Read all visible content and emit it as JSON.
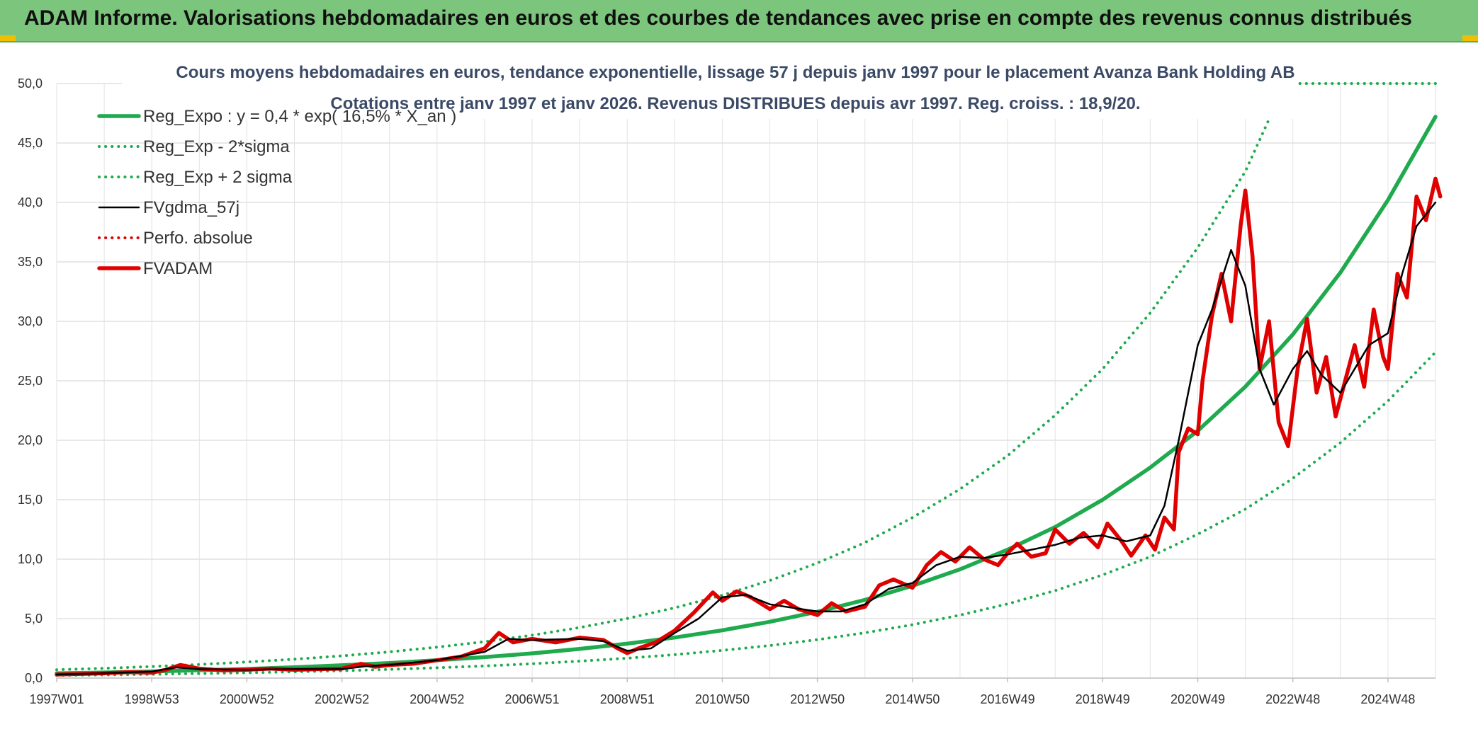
{
  "banner": {
    "title": "ADAM Informe. Valorisations hebdomadaires en euros et des courbes de tendances avec prise en compte des revenus connus distribués"
  },
  "chart_data": {
    "type": "line",
    "title": "Cours moyens hebdomadaires en euros, tendance exponentielle, lissage 57 j depuis janv 1997 pour le placement Avanza Bank Holding AB",
    "subtitle": "Cotations entre janv 1997 et janv 2026. Revenus DISTRIBUES depuis avr 1997. Reg. croiss. : 18,9/20.",
    "xlabel": "",
    "ylabel": "",
    "xlim": [
      1997.0,
      2026.0
    ],
    "ylim": [
      0,
      50
    ],
    "y_ticks": [
      "0,0",
      "5,0",
      "10,0",
      "15,0",
      "20,0",
      "25,0",
      "30,0",
      "35,0",
      "40,0",
      "45,0",
      "50,0"
    ],
    "x_ticks": [
      {
        "label": "1997W01",
        "x": 1997.0
      },
      {
        "label": "1998W53",
        "x": 1999.0
      },
      {
        "label": "2000W52",
        "x": 2001.0
      },
      {
        "label": "2002W52",
        "x": 2003.0
      },
      {
        "label": "2004W52",
        "x": 2005.0
      },
      {
        "label": "2006W51",
        "x": 2007.0
      },
      {
        "label": "2008W51",
        "x": 2009.0
      },
      {
        "label": "2010W50",
        "x": 2011.0
      },
      {
        "label": "2012W50",
        "x": 2013.0
      },
      {
        "label": "2014W50",
        "x": 2015.0
      },
      {
        "label": "2016W49",
        "x": 2017.0
      },
      {
        "label": "2018W49",
        "x": 2019.0
      },
      {
        "label": "2020W49",
        "x": 2021.0
      },
      {
        "label": "2022W48",
        "x": 2023.0
      },
      {
        "label": "2024W48",
        "x": 2025.0
      }
    ],
    "legend_position": "top-left",
    "series": [
      {
        "name": "Reg_Expo : y = 0,4 * exp( 16,5% *  X_an )",
        "color": "#1faa4e",
        "style": "solid-thick",
        "points": [
          [
            1997.0,
            0.4
          ],
          [
            1998.0,
            0.47
          ],
          [
            1999.0,
            0.56
          ],
          [
            2000.0,
            0.66
          ],
          [
            2001.0,
            0.77
          ],
          [
            2002.0,
            0.91
          ],
          [
            2003.0,
            1.08
          ],
          [
            2004.0,
            1.27
          ],
          [
            2005.0,
            1.5
          ],
          [
            2006.0,
            1.76
          ],
          [
            2007.0,
            2.08
          ],
          [
            2008.0,
            2.45
          ],
          [
            2009.0,
            2.89
          ],
          [
            2010.0,
            3.41
          ],
          [
            2011.0,
            4.02
          ],
          [
            2012.0,
            4.74
          ],
          [
            2013.0,
            5.58
          ],
          [
            2014.0,
            6.58
          ],
          [
            2015.0,
            7.76
          ],
          [
            2016.0,
            9.15
          ],
          [
            2017.0,
            10.8
          ],
          [
            2018.0,
            12.7
          ],
          [
            2019.0,
            15.0
          ],
          [
            2020.0,
            17.7
          ],
          [
            2021.0,
            20.8
          ],
          [
            2022.0,
            24.5
          ],
          [
            2023.0,
            28.9
          ],
          [
            2024.0,
            34.1
          ],
          [
            2025.0,
            40.2
          ],
          [
            2026.0,
            47.2
          ]
        ]
      },
      {
        "name": "Reg_Exp - 2*sigma",
        "color": "#1faa4e",
        "style": "dotted",
        "points": [
          [
            1997.0,
            0.23
          ],
          [
            1998.0,
            0.27
          ],
          [
            1999.0,
            0.32
          ],
          [
            2000.0,
            0.38
          ],
          [
            2001.0,
            0.45
          ],
          [
            2002.0,
            0.53
          ],
          [
            2003.0,
            0.62
          ],
          [
            2004.0,
            0.73
          ],
          [
            2005.0,
            0.87
          ],
          [
            2006.0,
            1.02
          ],
          [
            2007.0,
            1.2
          ],
          [
            2008.0,
            1.42
          ],
          [
            2009.0,
            1.67
          ],
          [
            2010.0,
            1.97
          ],
          [
            2011.0,
            2.33
          ],
          [
            2012.0,
            2.74
          ],
          [
            2013.0,
            3.23
          ],
          [
            2014.0,
            3.81
          ],
          [
            2015.0,
            4.49
          ],
          [
            2016.0,
            5.3
          ],
          [
            2017.0,
            6.24
          ],
          [
            2018.0,
            7.36
          ],
          [
            2019.0,
            8.68
          ],
          [
            2020.0,
            10.2
          ],
          [
            2021.0,
            12.1
          ],
          [
            2022.0,
            14.2
          ],
          [
            2023.0,
            16.8
          ],
          [
            2024.0,
            19.8
          ],
          [
            2025.0,
            23.3
          ],
          [
            2026.0,
            27.4
          ]
        ]
      },
      {
        "name": "Reg_Exp + 2 sigma",
        "color": "#1faa4e",
        "style": "dotted",
        "points": [
          [
            1997.0,
            0.7
          ],
          [
            1998.0,
            0.82
          ],
          [
            1999.0,
            0.97
          ],
          [
            2000.0,
            1.14
          ],
          [
            2001.0,
            1.35
          ],
          [
            2002.0,
            1.59
          ],
          [
            2003.0,
            1.87
          ],
          [
            2004.0,
            2.2
          ],
          [
            2005.0,
            2.6
          ],
          [
            2006.0,
            3.06
          ],
          [
            2007.0,
            3.61
          ],
          [
            2008.0,
            4.25
          ],
          [
            2009.0,
            5.01
          ],
          [
            2010.0,
            5.91
          ],
          [
            2011.0,
            6.97
          ],
          [
            2012.0,
            8.21
          ],
          [
            2013.0,
            9.68
          ],
          [
            2014.0,
            11.4
          ],
          [
            2015.0,
            13.5
          ],
          [
            2016.0,
            15.9
          ],
          [
            2017.0,
            18.7
          ],
          [
            2018.0,
            22.1
          ],
          [
            2019.0,
            26.0
          ],
          [
            2020.0,
            30.7
          ],
          [
            2021.0,
            36.2
          ],
          [
            2022.0,
            42.6
          ],
          [
            2022.5,
            47.0
          ],
          [
            2022.8,
            50.0
          ],
          [
            2026.0,
            50.0
          ]
        ]
      },
      {
        "name": "FVgdma_57j",
        "color": "#000000",
        "style": "solid",
        "points": [
          [
            1997.0,
            0.3
          ],
          [
            1998.0,
            0.4
          ],
          [
            1999.0,
            0.55
          ],
          [
            1999.5,
            0.9
          ],
          [
            2000.0,
            0.75
          ],
          [
            2001.0,
            0.7
          ],
          [
            2002.0,
            0.75
          ],
          [
            2003.0,
            0.75
          ],
          [
            2003.5,
            1.0
          ],
          [
            2004.0,
            1.1
          ],
          [
            2005.0,
            1.5
          ],
          [
            2006.0,
            2.2
          ],
          [
            2006.5,
            3.3
          ],
          [
            2007.0,
            3.2
          ],
          [
            2008.0,
            3.3
          ],
          [
            2008.5,
            3.1
          ],
          [
            2009.0,
            2.3
          ],
          [
            2009.5,
            2.5
          ],
          [
            2010.0,
            3.8
          ],
          [
            2010.5,
            5.0
          ],
          [
            2011.0,
            6.8
          ],
          [
            2011.5,
            7.0
          ],
          [
            2012.0,
            6.2
          ],
          [
            2012.5,
            5.9
          ],
          [
            2013.0,
            5.6
          ],
          [
            2013.5,
            5.6
          ],
          [
            2014.0,
            6.2
          ],
          [
            2014.5,
            7.5
          ],
          [
            2015.0,
            8.0
          ],
          [
            2015.5,
            9.5
          ],
          [
            2016.0,
            10.2
          ],
          [
            2016.5,
            10.1
          ],
          [
            2017.0,
            10.4
          ],
          [
            2017.5,
            10.8
          ],
          [
            2018.0,
            11.2
          ],
          [
            2018.5,
            11.8
          ],
          [
            2019.0,
            12.0
          ],
          [
            2019.5,
            11.5
          ],
          [
            2020.0,
            12.0
          ],
          [
            2020.3,
            14.5
          ],
          [
            2020.6,
            20.0
          ],
          [
            2021.0,
            28.0
          ],
          [
            2021.3,
            31.0
          ],
          [
            2021.7,
            36.0
          ],
          [
            2022.0,
            33.0
          ],
          [
            2022.3,
            26.0
          ],
          [
            2022.6,
            23.0
          ],
          [
            2023.0,
            26.0
          ],
          [
            2023.3,
            27.5
          ],
          [
            2023.6,
            25.5
          ],
          [
            2024.0,
            24.0
          ],
          [
            2024.3,
            26.0
          ],
          [
            2024.6,
            28.0
          ],
          [
            2025.0,
            29.0
          ],
          [
            2025.3,
            34.0
          ],
          [
            2025.6,
            38.0
          ],
          [
            2026.0,
            40.0
          ]
        ]
      },
      {
        "name": "Perfo. absolue",
        "color": "#e00000",
        "style": "dotted",
        "points": []
      },
      {
        "name": "FVADAM",
        "color": "#e00000",
        "style": "solid-thick",
        "points": [
          [
            1997.0,
            0.3
          ],
          [
            1997.5,
            0.35
          ],
          [
            1998.0,
            0.4
          ],
          [
            1998.5,
            0.5
          ],
          [
            1999.0,
            0.45
          ],
          [
            1999.3,
            0.7
          ],
          [
            1999.6,
            1.1
          ],
          [
            2000.0,
            0.8
          ],
          [
            2000.5,
            0.65
          ],
          [
            2001.0,
            0.7
          ],
          [
            2001.5,
            0.8
          ],
          [
            2002.0,
            0.7
          ],
          [
            2002.5,
            0.75
          ],
          [
            2003.0,
            0.8
          ],
          [
            2003.4,
            1.2
          ],
          [
            2003.7,
            0.95
          ],
          [
            2004.0,
            1.1
          ],
          [
            2004.5,
            1.2
          ],
          [
            2005.0,
            1.5
          ],
          [
            2005.5,
            1.8
          ],
          [
            2006.0,
            2.5
          ],
          [
            2006.3,
            3.8
          ],
          [
            2006.6,
            3.0
          ],
          [
            2007.0,
            3.3
          ],
          [
            2007.5,
            3.0
          ],
          [
            2008.0,
            3.4
          ],
          [
            2008.5,
            3.2
          ],
          [
            2008.8,
            2.5
          ],
          [
            2009.0,
            2.1
          ],
          [
            2009.3,
            2.6
          ],
          [
            2009.6,
            3.0
          ],
          [
            2010.0,
            4.0
          ],
          [
            2010.4,
            5.5
          ],
          [
            2010.8,
            7.2
          ],
          [
            2011.0,
            6.5
          ],
          [
            2011.3,
            7.3
          ],
          [
            2011.6,
            6.8
          ],
          [
            2012.0,
            5.8
          ],
          [
            2012.3,
            6.5
          ],
          [
            2012.6,
            5.8
          ],
          [
            2013.0,
            5.3
          ],
          [
            2013.3,
            6.3
          ],
          [
            2013.6,
            5.6
          ],
          [
            2014.0,
            6.0
          ],
          [
            2014.3,
            7.8
          ],
          [
            2014.6,
            8.3
          ],
          [
            2015.0,
            7.6
          ],
          [
            2015.3,
            9.5
          ],
          [
            2015.6,
            10.6
          ],
          [
            2015.9,
            9.8
          ],
          [
            2016.2,
            11.0
          ],
          [
            2016.5,
            10.0
          ],
          [
            2016.8,
            9.5
          ],
          [
            2017.0,
            10.5
          ],
          [
            2017.2,
            11.3
          ],
          [
            2017.5,
            10.2
          ],
          [
            2017.8,
            10.5
          ],
          [
            2018.0,
            12.5
          ],
          [
            2018.3,
            11.3
          ],
          [
            2018.6,
            12.2
          ],
          [
            2018.9,
            11.0
          ],
          [
            2019.1,
            13.0
          ],
          [
            2019.4,
            11.5
          ],
          [
            2019.6,
            10.3
          ],
          [
            2019.9,
            12.0
          ],
          [
            2020.1,
            10.8
          ],
          [
            2020.3,
            13.5
          ],
          [
            2020.5,
            12.5
          ],
          [
            2020.6,
            19.0
          ],
          [
            2020.8,
            21.0
          ],
          [
            2021.0,
            20.5
          ],
          [
            2021.1,
            25.0
          ],
          [
            2021.3,
            30.5
          ],
          [
            2021.5,
            34.0
          ],
          [
            2021.7,
            30.0
          ],
          [
            2021.9,
            38.0
          ],
          [
            2022.0,
            41.0
          ],
          [
            2022.15,
            35.5
          ],
          [
            2022.3,
            26.0
          ],
          [
            2022.5,
            30.0
          ],
          [
            2022.7,
            21.5
          ],
          [
            2022.9,
            19.5
          ],
          [
            2023.1,
            26.0
          ],
          [
            2023.3,
            30.2
          ],
          [
            2023.5,
            24.0
          ],
          [
            2023.7,
            27.0
          ],
          [
            2023.9,
            22.0
          ],
          [
            2024.1,
            25.0
          ],
          [
            2024.3,
            28.0
          ],
          [
            2024.5,
            24.5
          ],
          [
            2024.7,
            31.0
          ],
          [
            2024.9,
            27.0
          ],
          [
            2025.0,
            26.0
          ],
          [
            2025.2,
            34.0
          ],
          [
            2025.4,
            32.0
          ],
          [
            2025.6,
            40.5
          ],
          [
            2025.8,
            38.5
          ],
          [
            2026.0,
            42.0
          ],
          [
            2026.1,
            40.5
          ]
        ]
      }
    ]
  }
}
